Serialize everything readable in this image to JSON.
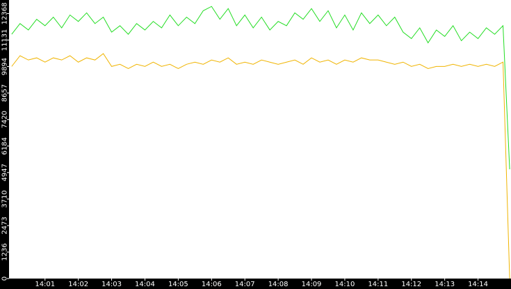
{
  "chart_data": {
    "type": "line",
    "x": [
      0,
      0.25,
      0.5,
      0.75,
      1,
      1.25,
      1.5,
      1.75,
      2,
      2.25,
      2.5,
      2.75,
      3,
      3.25,
      3.5,
      3.75,
      4,
      4.25,
      4.5,
      4.75,
      5,
      5.25,
      5.5,
      5.75,
      6,
      6.25,
      6.5,
      6.75,
      7,
      7.25,
      7.5,
      7.75,
      8,
      8.25,
      8.5,
      8.75,
      9,
      9.25,
      9.5,
      9.75,
      10,
      10.25,
      10.5,
      10.75,
      11,
      11.25,
      11.5,
      11.75,
      12,
      12.25,
      12.5,
      12.75,
      13,
      13.25,
      13.5,
      13.75,
      14,
      14.25,
      14.5,
      14.75,
      14.95
    ],
    "series": [
      {
        "color": "#22dd22",
        "values": [
          11400,
          11900,
          11600,
          12100,
          11800,
          12200,
          11700,
          12300,
          12000,
          12400,
          11900,
          12200,
          11500,
          11800,
          11400,
          11900,
          11600,
          12000,
          11700,
          12300,
          11800,
          12200,
          11900,
          12500,
          12700,
          12100,
          12600,
          11800,
          12300,
          11700,
          12200,
          11600,
          12000,
          11800,
          12400,
          12100,
          12600,
          12000,
          12500,
          11700,
          12300,
          11600,
          12400,
          11900,
          12300,
          11800,
          12200,
          11500,
          11200,
          11700,
          11000,
          11600,
          11300,
          11800,
          11100,
          11500,
          11200,
          11700,
          11400,
          11800,
          5100
        ]
      },
      {
        "color": "#f0b400",
        "values": [
          9900,
          10400,
          10200,
          10300,
          10100,
          10300,
          10200,
          10400,
          10100,
          10300,
          10200,
          10500,
          9900,
          10000,
          9800,
          10000,
          9900,
          10100,
          9900,
          10000,
          9800,
          10000,
          10100,
          10000,
          10200,
          10100,
          10300,
          10000,
          10100,
          10000,
          10200,
          10100,
          10000,
          10100,
          10200,
          10000,
          10300,
          10100,
          10200,
          10000,
          10200,
          10100,
          10300,
          10200,
          10200,
          10100,
          10000,
          10100,
          9900,
          10000,
          9800,
          9900,
          9900,
          10000,
          9900,
          10000,
          9900,
          10000,
          9900,
          10100,
          0
        ]
      }
    ],
    "xlim": [
      -0.08,
      14.99
    ],
    "ylim": [
      0,
      13000
    ],
    "yticks": [
      0,
      1236,
      2473,
      3710,
      4947,
      6184,
      7420,
      8657,
      9894,
      11131,
      12368
    ],
    "xticks": [
      {
        "value": 1,
        "label": "14:01"
      },
      {
        "value": 2,
        "label": "14:02"
      },
      {
        "value": 3,
        "label": "14:03"
      },
      {
        "value": 4,
        "label": "14:04"
      },
      {
        "value": 5,
        "label": "14:05"
      },
      {
        "value": 6,
        "label": "14:06"
      },
      {
        "value": 7,
        "label": "14:07"
      },
      {
        "value": 8,
        "label": "14:08"
      },
      {
        "value": 9,
        "label": "14:09"
      },
      {
        "value": 10,
        "label": "14:10"
      },
      {
        "value": 11,
        "label": "14:11"
      },
      {
        "value": 12,
        "label": "14:12"
      },
      {
        "value": 13,
        "label": "14:13"
      },
      {
        "value": 14,
        "label": "14:14"
      }
    ]
  }
}
